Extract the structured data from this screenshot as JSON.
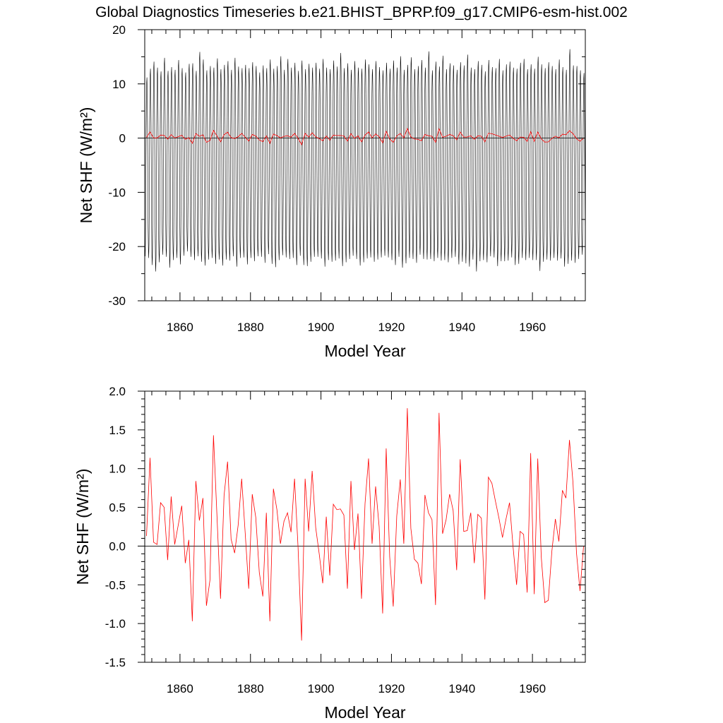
{
  "figure": {
    "title": "Global Diagnostics Timeseries b.e21.BHIST_BPRP.f09_g17.CMIP6-esm-hist.002"
  },
  "colors": {
    "monthly": "#000000",
    "annual": "#ff0000",
    "zero_line": "#000000"
  },
  "chart_data": [
    {
      "type": "line",
      "xlabel": "Model Year",
      "ylabel": "Net SHF (W/m²)",
      "xlim": [
        1850,
        1975
      ],
      "ylim": [
        -30,
        20
      ],
      "xticks": [
        "1860",
        "1880",
        "1900",
        "1920",
        "1940",
        "1960"
      ],
      "yticks": [
        "-30",
        "-20",
        "-10",
        "0",
        "10",
        "20"
      ],
      "monthly_climatology": [
        -21.0,
        -22.5,
        -20.0,
        -12.0,
        0.0,
        8.0,
        11.5,
        12.5,
        9.5,
        2.5,
        -8.0,
        -17.0
      ],
      "monthly_period": [
        "1850-01",
        "1974-12"
      ],
      "series": [
        {
          "style": "monthly",
          "x_start": 1850,
          "annual_min": [
            -21.8,
            -22.1,
            -23.4,
            -24.6,
            -22.9,
            -21.5,
            -21.9,
            -23.9,
            -22.5,
            -22.1,
            -23.3,
            -21.7,
            -20.9,
            -21.9,
            -22.5,
            -21.8,
            -22.8,
            -23.5,
            -22.4,
            -22.1,
            -23.2,
            -22.4,
            -23.5,
            -22.4,
            -22.6,
            -21.8,
            -23.7,
            -22.1,
            -22.0,
            -23.3,
            -22.1,
            -22.7,
            -21.8,
            -21.9,
            -23.0,
            -21.4,
            -23.2,
            -23.8,
            -22.5,
            -21.6,
            -22.0,
            -22.3,
            -22.1,
            -23.4,
            -21.7,
            -23.4,
            -23.6,
            -22.8,
            -21.9,
            -21.9,
            -22.2,
            -23.7,
            -22.5,
            -22.8,
            -22.6,
            -22.2,
            -23.6,
            -22.9,
            -22.3,
            -21.7,
            -22.3,
            -23.5,
            -22.9,
            -22.2,
            -22.0,
            -22.8,
            -22.4,
            -22.0,
            -21.7,
            -22.0,
            -22.5,
            -23.4,
            -21.9,
            -23.9,
            -23.1,
            -22.1,
            -22.3,
            -23.0,
            -21.5,
            -22.3,
            -22.4,
            -22.3,
            -22.7,
            -22.1,
            -22.6,
            -22.5,
            -22.9,
            -22.1,
            -21.9,
            -23.3,
            -22.8,
            -23.1,
            -23.7,
            -22.4,
            -24.6,
            -22.7,
            -22.5,
            -22.9,
            -21.8,
            -22.0,
            -23.6,
            -22.7,
            -22.7,
            -22.6,
            -22.0,
            -23.4,
            -23.2,
            -22.1,
            -22.5,
            -22.1,
            -22.5,
            -22.5,
            -24.5,
            -22.8,
            -22.4,
            -22.6,
            -22.1,
            -22.6,
            -22.2,
            -23.7,
            -23.2,
            -22.6,
            -23.0,
            -22.3,
            -21.5
          ],
          "annual_max": [
            11.2,
            12.8,
            14.1,
            13.0,
            12.3,
            14.8,
            12.4,
            13.1,
            12.6,
            14.4,
            12.9,
            12.1,
            13.7,
            13.8,
            12.4,
            15.9,
            14.5,
            12.5,
            13.3,
            13.0,
            14.7,
            12.7,
            13.5,
            14.2,
            12.6,
            14.8,
            13.2,
            12.9,
            13.5,
            12.9,
            14.0,
            13.3,
            12.1,
            13.4,
            12.9,
            14.5,
            12.8,
            13.3,
            15.1,
            12.6,
            14.6,
            13.0,
            13.9,
            12.4,
            14.3,
            12.7,
            13.7,
            13.0,
            13.9,
            12.8,
            14.6,
            13.0,
            12.7,
            14.3,
            13.2,
            15.7,
            12.9,
            13.8,
            12.6,
            14.2,
            13.0,
            12.8,
            14.5,
            13.6,
            12.7,
            14.2,
            13.1,
            12.5,
            13.9,
            12.8,
            14.3,
            13.0,
            15.1,
            12.6,
            13.5,
            14.9,
            12.7,
            13.3,
            14.4,
            13.0,
            16.0,
            12.5,
            14.1,
            13.2,
            15.2,
            12.7,
            13.8,
            13.4,
            12.6,
            14.0,
            13.4,
            15.4,
            13.0,
            12.7,
            14.2,
            13.5,
            12.3,
            14.4,
            13.1,
            12.9,
            14.6,
            12.5,
            13.6,
            14.1,
            13.0,
            12.8,
            13.9,
            14.6,
            12.7,
            13.6,
            12.8,
            15.0,
            13.6,
            12.9,
            14.0,
            13.3,
            12.7,
            14.5,
            13.1,
            12.6,
            16.4,
            13.4,
            13.3,
            12.5,
            12.0
          ]
        },
        {
          "style": "annual",
          "x_start": 1850.5,
          "values": [
            0.13,
            1.14,
            0.05,
            0.02,
            0.56,
            0.5,
            -0.18,
            0.64,
            0.02,
            0.27,
            0.52,
            -0.22,
            0.08,
            -0.97,
            0.84,
            0.33,
            0.62,
            -0.77,
            -0.44,
            1.43,
            0.38,
            -0.68,
            0.65,
            1.09,
            0.09,
            -0.09,
            0.27,
            0.87,
            0.17,
            -0.55,
            0.67,
            0.37,
            -0.34,
            -0.65,
            0.43,
            -0.97,
            0.74,
            0.47,
            0.03,
            0.32,
            0.43,
            0.18,
            0.87,
            -0.02,
            -1.22,
            0.87,
            0.19,
            0.97,
            0.24,
            -0.1,
            -0.48,
            0.38,
            -0.38,
            0.54,
            0.47,
            0.48,
            0.4,
            -0.55,
            0.84,
            -0.05,
            0.42,
            -0.68,
            0.55,
            1.13,
            0.03,
            0.77,
            0.25,
            -0.87,
            1.26,
            -0.14,
            -0.78,
            0.39,
            0.86,
            0.03,
            1.78,
            0.23,
            -0.17,
            -0.22,
            -0.49,
            0.66,
            0.43,
            0.34,
            -0.76,
            1.72,
            0.16,
            0.34,
            0.67,
            0.46,
            -0.31,
            1.12,
            0.19,
            0.2,
            0.43,
            -0.22,
            0.41,
            0.36,
            -0.69,
            0.89,
            0.81,
            0.58,
            0.36,
            0.11,
            0.35,
            0.56,
            -0.01,
            -0.5,
            0.19,
            0.15,
            -0.6,
            1.2,
            -0.62,
            1.13,
            -0.14,
            -0.73,
            -0.7,
            -0.07,
            0.35,
            0.06,
            0.72,
            0.62,
            1.37,
            0.82,
            -0.09,
            -0.58,
            0.0
          ]
        }
      ]
    },
    {
      "type": "line",
      "xlabel": "Model Year",
      "ylabel": "Net SHF (W/m²)",
      "xlim": [
        1850,
        1975
      ],
      "ylim": [
        -1.5,
        2.0
      ],
      "xticks": [
        "1860",
        "1880",
        "1900",
        "1920",
        "1940",
        "1960"
      ],
      "yticks": [
        "-1.5",
        "-1.0",
        "-0.5",
        "0.0",
        "0.5",
        "1.0",
        "1.5",
        "2.0"
      ],
      "series": [
        {
          "style": "annual",
          "x_start": 1850.5,
          "values": [
            0.13,
            1.14,
            0.05,
            0.02,
            0.56,
            0.5,
            -0.18,
            0.64,
            0.02,
            0.27,
            0.52,
            -0.22,
            0.08,
            -0.97,
            0.84,
            0.33,
            0.62,
            -0.77,
            -0.44,
            1.43,
            0.38,
            -0.68,
            0.65,
            1.09,
            0.09,
            -0.09,
            0.27,
            0.87,
            0.17,
            -0.55,
            0.67,
            0.37,
            -0.34,
            -0.65,
            0.43,
            -0.97,
            0.74,
            0.47,
            0.03,
            0.32,
            0.43,
            0.18,
            0.87,
            -0.02,
            -1.22,
            0.87,
            0.19,
            0.97,
            0.24,
            -0.1,
            -0.48,
            0.38,
            -0.38,
            0.54,
            0.47,
            0.48,
            0.4,
            -0.55,
            0.84,
            -0.05,
            0.42,
            -0.68,
            0.55,
            1.13,
            0.03,
            0.77,
            0.25,
            -0.87,
            1.26,
            -0.14,
            -0.78,
            0.39,
            0.86,
            0.03,
            1.78,
            0.23,
            -0.17,
            -0.22,
            -0.49,
            0.66,
            0.43,
            0.34,
            -0.76,
            1.72,
            0.16,
            0.34,
            0.67,
            0.46,
            -0.31,
            1.12,
            0.19,
            0.2,
            0.43,
            -0.22,
            0.41,
            0.36,
            -0.69,
            0.89,
            0.81,
            0.58,
            0.36,
            0.11,
            0.35,
            0.56,
            -0.01,
            -0.5,
            0.19,
            0.15,
            -0.6,
            1.2,
            -0.62,
            1.13,
            -0.14,
            -0.73,
            -0.7,
            -0.07,
            0.35,
            0.06,
            0.72,
            0.62,
            1.37,
            0.82,
            -0.09,
            -0.58,
            0.0
          ]
        }
      ]
    }
  ]
}
